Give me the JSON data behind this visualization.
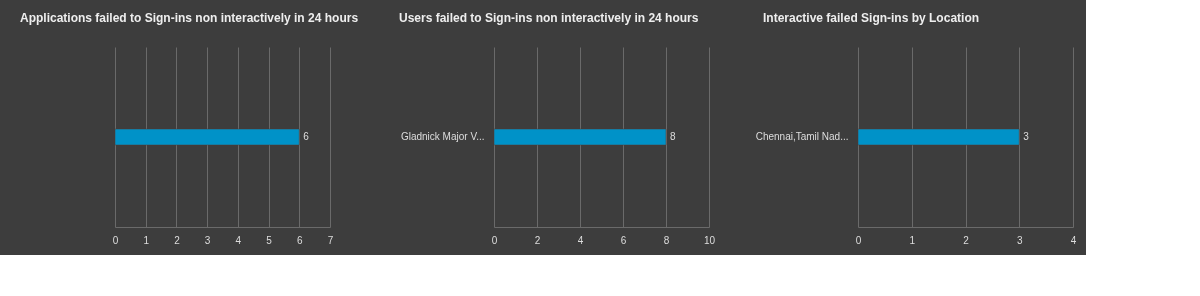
{
  "chart_data": [
    {
      "type": "bar",
      "orientation": "horizontal",
      "title": "Applications failed to Sign-ins non interactively in 24 hours",
      "categories": [
        null
      ],
      "values": [
        6
      ],
      "color": "#0092c8",
      "xlim": [
        0,
        7
      ],
      "xticks": [
        0,
        1,
        2,
        3,
        4,
        5,
        6,
        7
      ],
      "grid": "x",
      "data_labels": true
    },
    {
      "type": "bar",
      "orientation": "horizontal",
      "title": "Users failed to Sign-ins non interactively in 24 hours",
      "categories": [
        "Gladnick Major V..."
      ],
      "values": [
        8
      ],
      "color": "#0092c8",
      "xlim": [
        0,
        10
      ],
      "xticks": [
        0,
        2,
        4,
        6,
        8,
        10
      ],
      "grid": "x",
      "data_labels": true
    },
    {
      "type": "bar",
      "orientation": "horizontal",
      "title": "Interactive failed Sign-ins by Location",
      "categories": [
        "Chennai,Tamil Nad..."
      ],
      "values": [
        3
      ],
      "color": "#0092c8",
      "xlim": [
        0,
        4
      ],
      "xticks": [
        0,
        1,
        2,
        3,
        4
      ],
      "grid": "x",
      "data_labels": true
    }
  ]
}
